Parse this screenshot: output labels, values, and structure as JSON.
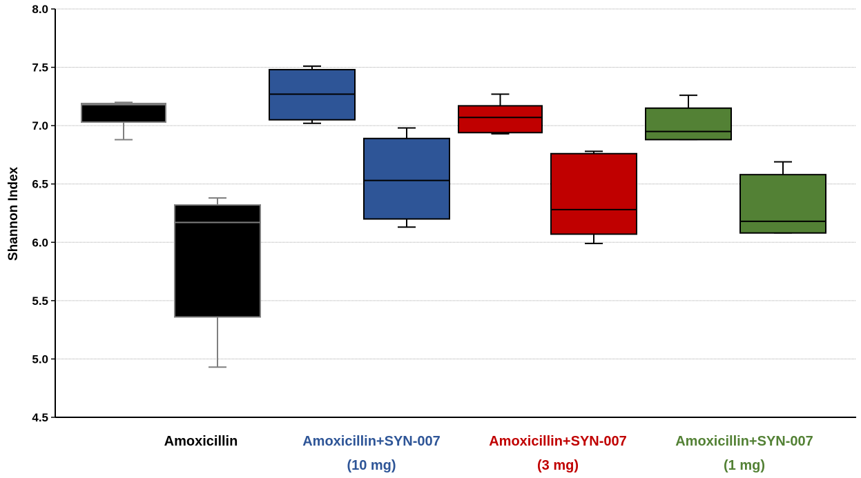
{
  "chart_data": {
    "type": "box",
    "title": "",
    "xlabel": "",
    "ylabel": "Shannon Index",
    "ylim": [
      4.5,
      8.0
    ],
    "yticks": [
      "4.5",
      "5.0",
      "5.5",
      "6.0",
      "6.5",
      "7.0",
      "7.5",
      "8.0"
    ],
    "grid": true,
    "groups": [
      {
        "label_line1": "Amoxicillin",
        "label_line2": "",
        "color": "#000000"
      },
      {
        "label_line1": "Amoxicillin+SYN-007",
        "label_line2": "(10 mg)",
        "color": "#2e5597"
      },
      {
        "label_line1": "Amoxicillin+SYN-007",
        "label_line2": "(3 mg)",
        "color": "#c00000"
      },
      {
        "label_line1": "Amoxicillin+SYN-007",
        "label_line2": "(1 mg)",
        "color": "#538135"
      }
    ],
    "series": [
      {
        "group": 0,
        "timepoint": "first",
        "color": "#000000",
        "outline": "#7f7f7f",
        "min": 6.88,
        "q1": 7.03,
        "median": 7.18,
        "q3": 7.19,
        "max": 7.2
      },
      {
        "group": 0,
        "timepoint": "second",
        "color": "#000000",
        "outline": "#7f7f7f",
        "min": 4.93,
        "q1": 5.36,
        "median": 6.17,
        "q3": 6.32,
        "max": 6.38
      },
      {
        "group": 1,
        "timepoint": "first",
        "color": "#2e5597",
        "outline": "#000000",
        "min": 7.02,
        "q1": 7.05,
        "median": 7.27,
        "q3": 7.48,
        "max": 7.51
      },
      {
        "group": 1,
        "timepoint": "second",
        "color": "#2e5597",
        "outline": "#000000",
        "min": 6.13,
        "q1": 6.2,
        "median": 6.53,
        "q3": 6.89,
        "max": 6.98
      },
      {
        "group": 2,
        "timepoint": "first",
        "color": "#c00000",
        "outline": "#000000",
        "min": 6.93,
        "q1": 6.94,
        "median": 7.07,
        "q3": 7.17,
        "max": 7.27
      },
      {
        "group": 2,
        "timepoint": "second",
        "color": "#c00000",
        "outline": "#000000",
        "min": 5.99,
        "q1": 6.07,
        "median": 6.28,
        "q3": 6.76,
        "max": 6.78
      },
      {
        "group": 3,
        "timepoint": "first",
        "color": "#538135",
        "outline": "#000000",
        "min": 6.88,
        "q1": 6.88,
        "median": 6.95,
        "q3": 7.15,
        "max": 7.26
      },
      {
        "group": 3,
        "timepoint": "second",
        "color": "#538135",
        "outline": "#000000",
        "min": 6.08,
        "q1": 6.08,
        "median": 6.18,
        "q3": 6.58,
        "max": 6.69
      }
    ]
  }
}
